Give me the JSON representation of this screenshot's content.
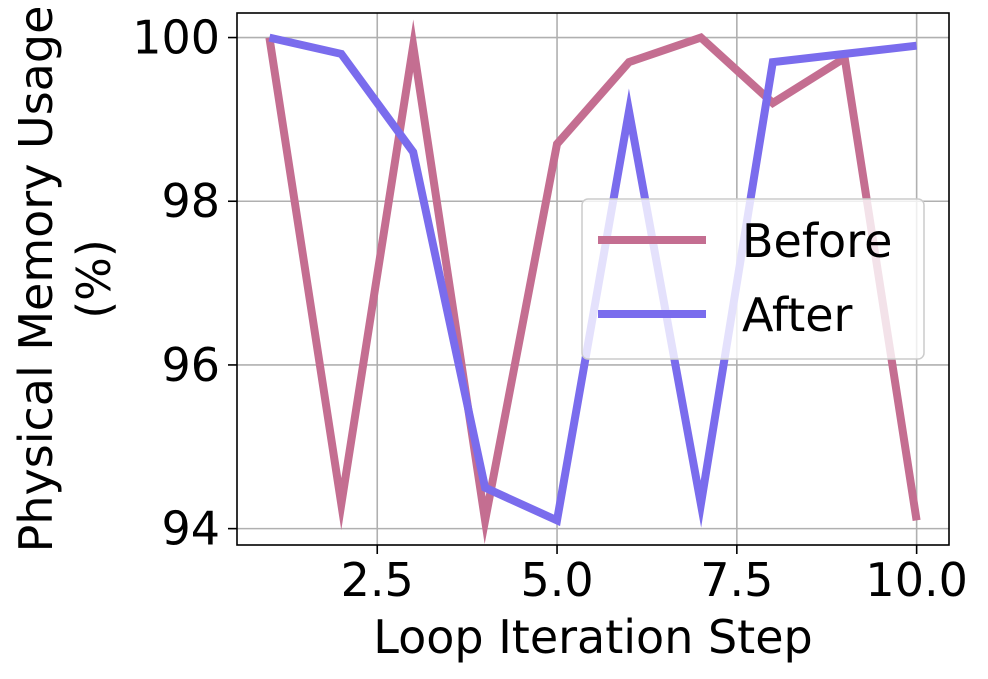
{
  "chart_data": {
    "type": "line",
    "xlabel": "Loop Iteration Step",
    "ylabel_line1": "Physical Memory Usage",
    "ylabel_line2": "(%)",
    "xlim": [
      0.55,
      10.45
    ],
    "ylim": [
      93.8,
      100.3
    ],
    "xticks": [
      2.5,
      5.0,
      7.5,
      10.0
    ],
    "xtick_labels": [
      "2.5",
      "5.0",
      "7.5",
      "10.0"
    ],
    "yticks": [
      94,
      96,
      98,
      100
    ],
    "ytick_labels": [
      "94",
      "96",
      "98",
      "100"
    ],
    "grid": true,
    "legend_position": "center-right",
    "x": [
      1,
      2,
      3,
      4,
      5,
      6,
      7,
      8,
      9,
      10
    ],
    "series": [
      {
        "name": "Before",
        "color": "#c46e91",
        "values": [
          100.0,
          94.3,
          99.9,
          94.1,
          98.7,
          99.7,
          100.0,
          99.2,
          99.75,
          94.1
        ]
      },
      {
        "name": "After",
        "color": "#7a6ced",
        "values": [
          100.0,
          99.8,
          98.6,
          94.5,
          94.1,
          99.1,
          94.3,
          99.7,
          99.8,
          99.9
        ]
      }
    ]
  }
}
